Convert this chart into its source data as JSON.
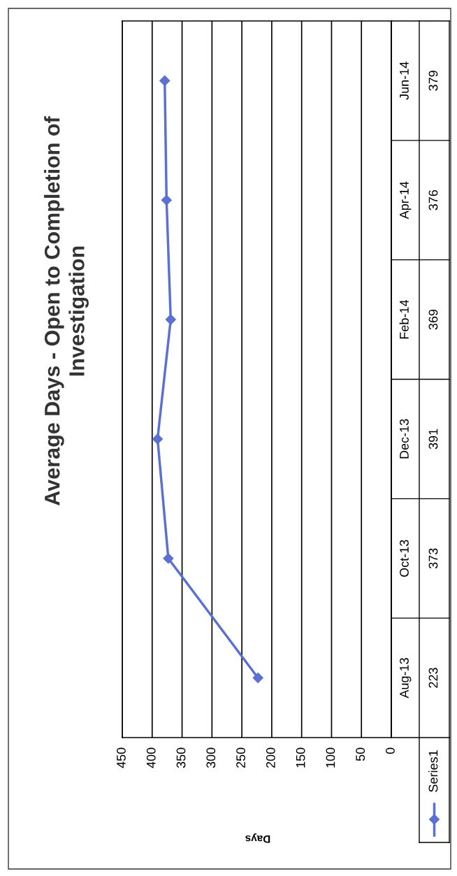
{
  "chart_data": {
    "type": "line",
    "orientation": "horizontal",
    "title": "Average Days - Open to Completion of\nInvestigation",
    "annotations": [
      "Days"
    ],
    "categories": [
      "Jun-14",
      "Apr-14",
      "Feb-14",
      "Dec-13",
      "Oct-13",
      "Aug-13"
    ],
    "series": [
      {
        "name": "Series1",
        "color": "#5b70d0",
        "values": [
          379,
          376,
          369,
          391,
          373,
          223
        ]
      }
    ],
    "xlim": [
      450,
      0
    ],
    "xticks": [
      0,
      50,
      100,
      150,
      200,
      250,
      300,
      350,
      400,
      450
    ],
    "grid": "x",
    "legend": "bottom",
    "marker": "diamond",
    "line_style": "solid",
    "data_labels": true
  }
}
